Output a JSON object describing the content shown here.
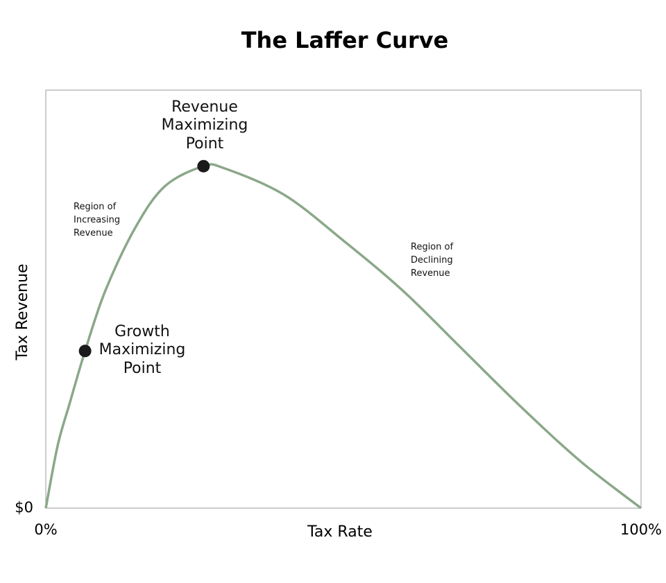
{
  "chart_data": {
    "type": "line",
    "title": "The Laffer Curve",
    "x_label": "Tax Rate",
    "y_label": "Tax Revenue",
    "xlim": [
      0,
      100
    ],
    "ylim": [
      0,
      100
    ],
    "xticks": [
      {
        "value": 0,
        "label": "0%"
      },
      {
        "value": 100,
        "label": "100%"
      }
    ],
    "yticks": [
      {
        "value": 0,
        "label": "$0"
      }
    ],
    "color": "#8aa889",
    "x": [
      0,
      2,
      4,
      6.6,
      10,
      15,
      20,
      26.5,
      30,
      40,
      50,
      60,
      70,
      80,
      90,
      100
    ],
    "values": [
      0,
      15,
      25,
      37.6,
      52,
      67,
      77,
      81.8,
      81.3,
      75,
      64,
      52,
      38,
      24,
      11,
      0
    ],
    "points": [
      {
        "label": "Revenue Maximizing Point",
        "x": 26.5,
        "y": 81.8
      },
      {
        "label": "Growth Maximizing Point",
        "x": 6.6,
        "y": 37.6
      }
    ],
    "annotations": [
      "Region of Increasing Revenue",
      "Region of Declining Revenue"
    ]
  }
}
